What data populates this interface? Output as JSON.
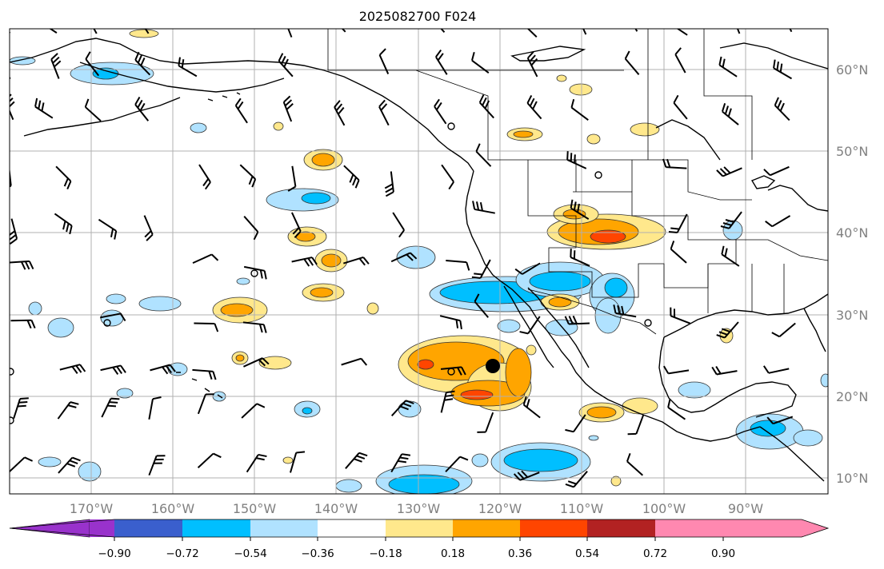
{
  "title": "2025082700 F024",
  "lat_labels": [
    "60°N",
    "50°N",
    "40°N",
    "30°N",
    "20°N",
    "10°N"
  ],
  "lon_labels": [
    "170°W",
    "160°W",
    "150°W",
    "140°W",
    "130°W",
    "120°W",
    "110°W",
    "100°W",
    "90°W"
  ],
  "colorbar": {
    "ticks": [
      "−0.90",
      "−0.72",
      "−0.54",
      "−0.36",
      "−0.18",
      "0.18",
      "0.36",
      "0.54",
      "0.72",
      "0.90"
    ],
    "colors": [
      "#9932cc",
      "#00008b",
      "#3a5fcd",
      "#00bfff",
      "#b0e2ff",
      "#ffffff",
      "#ffe88c",
      "#ffa500",
      "#ff4500",
      "#b22222",
      "#ff88b0"
    ]
  },
  "palette": {
    "pos_light": "#ffe88c",
    "pos_mid": "#ffa500",
    "pos_strong": "#ff4500",
    "neg_light": "#b0e2ff",
    "neg_mid": "#00bfff",
    "neg_strong": "#3a5fcd"
  }
}
